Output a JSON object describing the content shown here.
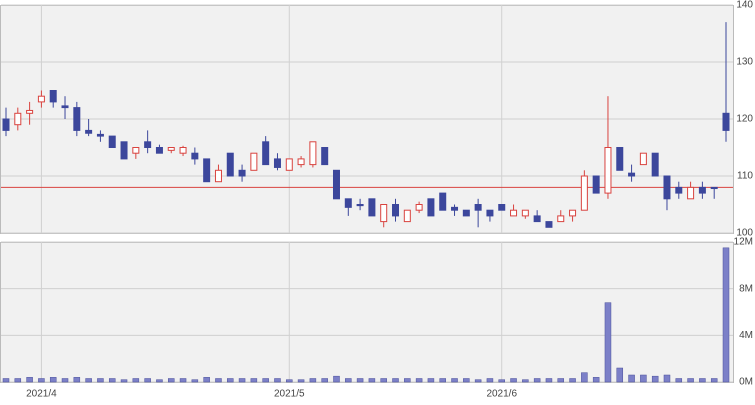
{
  "chart_data": {
    "type": "candlestick",
    "categories": [
      null,
      null,
      null,
      "2021/4",
      null,
      null,
      null,
      null,
      null,
      null,
      null,
      null,
      null,
      null,
      null,
      null,
      null,
      null,
      null,
      null,
      null,
      null,
      null,
      null,
      "2021/5",
      null,
      null,
      null,
      null,
      null,
      null,
      null,
      null,
      null,
      null,
      null,
      null,
      null,
      null,
      null,
      null,
      null,
      "2021/6",
      null,
      null,
      null,
      null,
      null,
      null,
      null,
      null,
      null,
      null,
      null,
      null,
      null,
      null,
      null,
      null,
      null,
      null,
      null
    ],
    "open": [
      120,
      119,
      121,
      123,
      125,
      122.3,
      122,
      118,
      117.3,
      117,
      116,
      114,
      116,
      115,
      114.5,
      114,
      114,
      113,
      109,
      114,
      111,
      111,
      116,
      113,
      111,
      112,
      112,
      115,
      111,
      106,
      105,
      106,
      102,
      105,
      102,
      104,
      106,
      107,
      104.5,
      104,
      105,
      104,
      105,
      103,
      103,
      103,
      102,
      102,
      103,
      104,
      110,
      107,
      115,
      110.5,
      112,
      114,
      110,
      108,
      106,
      108,
      108,
      121
    ],
    "high": [
      122,
      122,
      123,
      125,
      125,
      124,
      123,
      120,
      118,
      117,
      116,
      115,
      118,
      115.5,
      115,
      115.3,
      115,
      113,
      112,
      114,
      112,
      114,
      117,
      114,
      113,
      113.5,
      116,
      115,
      111,
      106,
      106,
      106,
      105,
      106,
      104,
      105.5,
      106,
      107,
      105,
      104,
      106,
      104,
      105,
      105,
      104,
      104,
      102,
      104,
      104,
      111,
      110,
      124,
      115,
      112,
      114,
      114,
      110,
      109,
      109,
      109,
      108,
      137
    ],
    "low": [
      117,
      118,
      119,
      122,
      122,
      120,
      117,
      117,
      116,
      115,
      113,
      113,
      114,
      114,
      114,
      113.5,
      112,
      109,
      109,
      110,
      109,
      111,
      112,
      111,
      111,
      111.5,
      111.5,
      112,
      106,
      103,
      104,
      103,
      101,
      102,
      102,
      103.5,
      103,
      104,
      103,
      103,
      101,
      102,
      104,
      103,
      102.5,
      102,
      101,
      102,
      102,
      104,
      107,
      106,
      111,
      109,
      112,
      110,
      104,
      106,
      106,
      106,
      106,
      116
    ],
    "close": [
      118,
      121,
      121.5,
      124,
      123,
      122,
      118,
      117.5,
      117,
      115,
      113,
      115,
      115,
      114,
      115,
      115,
      113,
      109,
      111,
      110,
      110,
      114,
      112,
      111.5,
      113,
      113,
      116,
      112,
      106,
      104.5,
      104.8,
      103,
      105,
      103,
      104,
      105,
      103,
      104,
      104,
      103,
      104,
      103,
      104,
      104,
      104,
      102,
      101,
      103,
      104,
      110,
      107,
      115,
      111,
      110,
      114,
      110,
      106,
      107,
      108,
      107,
      107.8,
      118
    ],
    "volume": [
      0.3,
      0.3,
      0.4,
      0.3,
      0.4,
      0.3,
      0.4,
      0.3,
      0.3,
      0.3,
      0.2,
      0.3,
      0.3,
      0.2,
      0.3,
      0.3,
      0.2,
      0.4,
      0.3,
      0.3,
      0.3,
      0.3,
      0.3,
      0.3,
      0.2,
      0.2,
      0.3,
      0.3,
      0.5,
      0.3,
      0.3,
      0.3,
      0.3,
      0.3,
      0.3,
      0.3,
      0.3,
      0.3,
      0.3,
      0.3,
      0.2,
      0.3,
      0.2,
      0.3,
      0.2,
      0.3,
      0.3,
      0.3,
      0.3,
      0.8,
      0.4,
      6.8,
      1.2,
      0.6,
      0.6,
      0.5,
      0.6,
      0.3,
      0.3,
      0.3,
      0.3,
      11.5
    ],
    "up_color": "#d9433f",
    "down_color": "#3c479c",
    "reference_line": 108,
    "reference_color": "#d9433f",
    "ylim": [
      100,
      140
    ],
    "yticks": [
      100,
      110,
      120,
      130,
      140
    ],
    "vlim": [
      0,
      12
    ],
    "vticks": [
      {
        "value": 0,
        "label": "0M"
      },
      {
        "value": 4,
        "label": "4M"
      },
      {
        "value": 8,
        "label": "8M"
      },
      {
        "value": 12,
        "label": "12M"
      }
    ],
    "volume_color": "#7c80c8",
    "grid": true
  }
}
